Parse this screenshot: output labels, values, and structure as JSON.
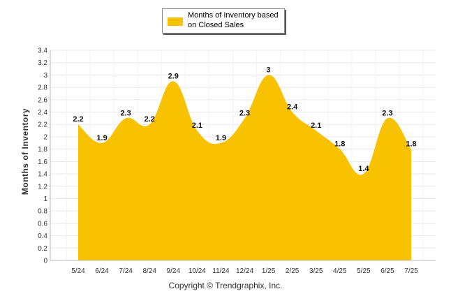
{
  "chart_data": {
    "type": "area",
    "categories": [
      "5/24",
      "6/24",
      "7/24",
      "8/24",
      "9/24",
      "10/24",
      "11/24",
      "12/24",
      "1/25",
      "2/25",
      "3/25",
      "4/25",
      "5/25",
      "6/25",
      "7/25"
    ],
    "series": [
      {
        "name": "Months of Inventory based on Closed Sales",
        "values": [
          2.2,
          1.9,
          2.3,
          2.2,
          2.9,
          2.1,
          1.9,
          2.3,
          3,
          2.4,
          2.1,
          1.8,
          1.4,
          2.3,
          1.8
        ]
      }
    ],
    "data_labels": [
      "2.2",
      "1.9",
      "2.3",
      "2.2",
      "2.9",
      "2.1",
      "1.9",
      "2.3",
      "3",
      "2.4",
      "2.1",
      "1.8",
      "1.4",
      "2.3",
      "1.8"
    ],
    "ylabel": "Months of Inventory",
    "xlabel": "",
    "ylim": [
      0,
      3.4
    ],
    "yticks": [
      "0",
      "0.2",
      "0.4",
      "0.6",
      "0.8",
      "1",
      "1.2",
      "1.4",
      "1.6",
      "1.8",
      "2",
      "2.2",
      "2.4",
      "2.6",
      "2.8",
      "3",
      "3.2",
      "3.4"
    ],
    "grid": true,
    "legend_position": "top-center",
    "fill_color": "#F8C200",
    "grid_color": "#E8E8E8"
  },
  "footer": {
    "copyright": "Copyright © Trendgraphix, Inc."
  }
}
